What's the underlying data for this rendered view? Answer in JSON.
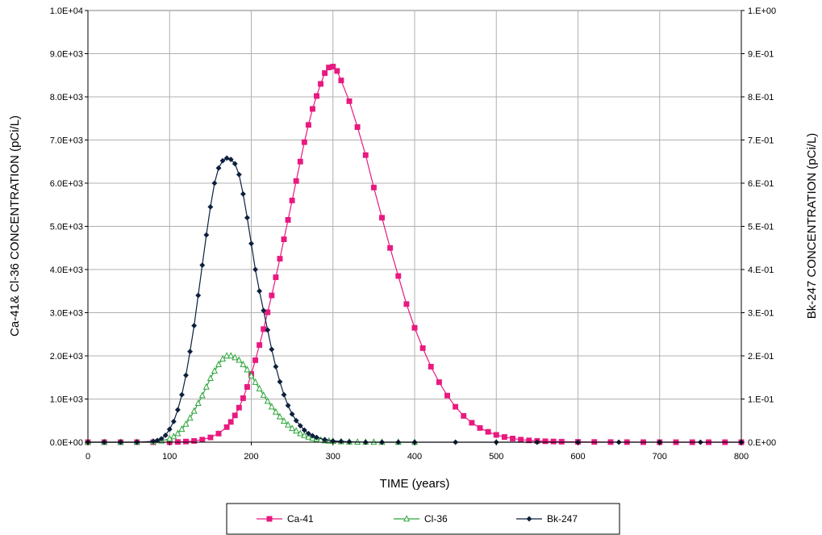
{
  "chart_data": {
    "type": "line",
    "title": "",
    "xlabel": "TIME (years)",
    "ylabel_left": "Ca-41& Cl-36 CONCENTRATION (pCi/L)",
    "ylabel_right": "Bk-247 CONCENTRATION (pCi/L)",
    "xlim": [
      0,
      800
    ],
    "ylim_left": [
      0,
      10000
    ],
    "ylim_right": [
      0,
      1
    ],
    "x_ticks": [
      0,
      100,
      200,
      300,
      400,
      500,
      600,
      700,
      800
    ],
    "x_tick_labels": [
      "0",
      "100",
      "200",
      "300",
      "400",
      "500",
      "600",
      "700",
      "800"
    ],
    "y_left_ticks": [
      0,
      1000,
      2000,
      3000,
      4000,
      5000,
      6000,
      7000,
      8000,
      9000,
      10000
    ],
    "y_left_tick_labels": [
      "0.0E+00",
      "1.0E+03",
      "2.0E+03",
      "3.0E+03",
      "4.0E+03",
      "5.0E+03",
      "6.0E+03",
      "7.0E+03",
      "8.0E+03",
      "9.0E+03",
      "1.0E+04"
    ],
    "y_right_ticks": [
      0,
      0.1,
      0.2,
      0.3,
      0.4,
      0.5,
      0.6,
      0.7,
      0.8,
      0.9,
      1.0
    ],
    "y_right_tick_labels": [
      "0.E+00",
      "1.E-01",
      "2.E-01",
      "3.E-01",
      "4.E-01",
      "5.E-01",
      "6.E-01",
      "7.E-01",
      "8.E-01",
      "9.E-01",
      "1.E+00"
    ],
    "grid": true,
    "legend_position": "bottom",
    "series": [
      {
        "name": "Ca-41",
        "axis": "left",
        "color": "#e8197f",
        "marker": "square",
        "x": [
          0,
          20,
          40,
          60,
          80,
          100,
          110,
          120,
          130,
          140,
          150,
          160,
          170,
          175,
          180,
          185,
          190,
          195,
          200,
          205,
          210,
          215,
          220,
          225,
          230,
          235,
          240,
          245,
          250,
          255,
          260,
          265,
          270,
          275,
          280,
          285,
          290,
          295,
          300,
          305,
          310,
          320,
          330,
          340,
          350,
          360,
          370,
          380,
          390,
          400,
          410,
          420,
          430,
          440,
          450,
          460,
          470,
          480,
          490,
          500,
          510,
          520,
          530,
          540,
          550,
          560,
          570,
          580,
          600,
          620,
          640,
          660,
          680,
          700,
          720,
          740,
          760,
          780,
          800
        ],
        "y": [
          0,
          0,
          0,
          0,
          0,
          0,
          5,
          15,
          30,
          60,
          110,
          200,
          350,
          470,
          620,
          800,
          1020,
          1280,
          1580,
          1900,
          2250,
          2620,
          3010,
          3400,
          3820,
          4250,
          4700,
          5150,
          5600,
          6050,
          6500,
          6950,
          7350,
          7720,
          8020,
          8300,
          8550,
          8680,
          8700,
          8600,
          8380,
          7900,
          7300,
          6650,
          5900,
          5200,
          4500,
          3850,
          3200,
          2650,
          2180,
          1750,
          1390,
          1080,
          820,
          610,
          450,
          330,
          240,
          170,
          120,
          85,
          60,
          42,
          30,
          22,
          16,
          12,
          7,
          5,
          3,
          2,
          1,
          1,
          0,
          0,
          0,
          0,
          0
        ]
      },
      {
        "name": "Cl-36",
        "axis": "left",
        "color": "#2ca53a",
        "marker": "triangle",
        "x": [
          0,
          20,
          40,
          60,
          80,
          90,
          100,
          105,
          110,
          115,
          120,
          125,
          130,
          135,
          140,
          145,
          150,
          155,
          160,
          165,
          170,
          175,
          180,
          185,
          190,
          195,
          200,
          205,
          210,
          215,
          220,
          225,
          230,
          235,
          240,
          245,
          250,
          255,
          260,
          265,
          270,
          275,
          280,
          285,
          290,
          295,
          300,
          310,
          320,
          330,
          340,
          350,
          360,
          380,
          400
        ],
        "y": [
          0,
          0,
          0,
          0,
          10,
          30,
          80,
          130,
          200,
          300,
          420,
          560,
          720,
          900,
          1080,
          1280,
          1480,
          1650,
          1800,
          1930,
          2000,
          2000,
          1960,
          1900,
          1800,
          1680,
          1540,
          1390,
          1240,
          1090,
          950,
          820,
          700,
          590,
          490,
          400,
          320,
          260,
          200,
          155,
          120,
          90,
          68,
          50,
          37,
          27,
          20,
          12,
          7,
          4,
          2,
          1,
          0,
          0,
          0
        ]
      },
      {
        "name": "Bk-247",
        "axis": "right",
        "color": "#0d1f3d",
        "marker": "diamond",
        "x": [
          0,
          20,
          40,
          60,
          80,
          85,
          90,
          95,
          100,
          105,
          110,
          115,
          120,
          125,
          130,
          135,
          140,
          145,
          150,
          155,
          160,
          165,
          170,
          175,
          180,
          185,
          190,
          195,
          200,
          205,
          210,
          215,
          220,
          225,
          230,
          235,
          240,
          245,
          250,
          255,
          260,
          265,
          270,
          275,
          280,
          290,
          300,
          310,
          320,
          340,
          360,
          380,
          400,
          450,
          500,
          550,
          600,
          650,
          700,
          750,
          800
        ],
        "y": [
          0,
          0,
          0,
          0,
          0.002,
          0.004,
          0.008,
          0.016,
          0.03,
          0.048,
          0.075,
          0.11,
          0.155,
          0.21,
          0.27,
          0.34,
          0.41,
          0.48,
          0.545,
          0.6,
          0.635,
          0.652,
          0.658,
          0.655,
          0.645,
          0.62,
          0.575,
          0.52,
          0.46,
          0.4,
          0.35,
          0.305,
          0.26,
          0.215,
          0.175,
          0.14,
          0.11,
          0.085,
          0.065,
          0.05,
          0.038,
          0.028,
          0.02,
          0.015,
          0.011,
          0.006,
          0.003,
          0.002,
          0.001,
          0,
          0,
          0,
          0,
          0,
          0,
          0,
          0,
          0,
          0,
          0,
          0
        ]
      }
    ]
  }
}
